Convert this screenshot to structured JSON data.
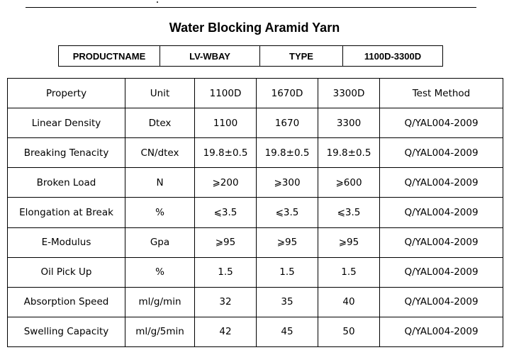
{
  "title": "Water Blocking Aramid Yarn",
  "header": {
    "product_name_label": "PRODUCTNAME",
    "product_name_value": "LV-WBAY",
    "type_label": "TYPE",
    "type_value": "1100D-3300D"
  },
  "specs": {
    "columns": [
      "Property",
      "Unit",
      "1100D",
      "1670D",
      "3300D",
      "Test Method"
    ],
    "rows": [
      [
        "Linear Density",
        "Dtex",
        "1100",
        "1670",
        "3300",
        "Q/YAL004-2009"
      ],
      [
        "Breaking Tenacity",
        "CN/dtex",
        "19.8±0.5",
        "19.8±0.5",
        "19.8±0.5",
        "Q/YAL004-2009"
      ],
      [
        "Broken Load",
        "N",
        "⩾200",
        "⩾300",
        "⩾600",
        "Q/YAL004-2009"
      ],
      [
        "Elongation at Break",
        "%",
        "⩽3.5",
        "⩽3.5",
        "⩽3.5",
        "Q/YAL004-2009"
      ],
      [
        "E-Modulus",
        "Gpa",
        "⩾95",
        "⩾95",
        "⩾95",
        "Q/YAL004-2009"
      ],
      [
        "Oil Pick Up",
        "%",
        "1.5",
        "1.5",
        "1.5",
        "Q/YAL004-2009"
      ],
      [
        "Absorption Speed",
        "ml/g/min",
        "32",
        "35",
        "40",
        "Q/YAL004-2009"
      ],
      [
        "Swelling Capacity",
        "ml/g/5min",
        "42",
        "45",
        "50",
        "Q/YAL004-2009"
      ]
    ]
  }
}
